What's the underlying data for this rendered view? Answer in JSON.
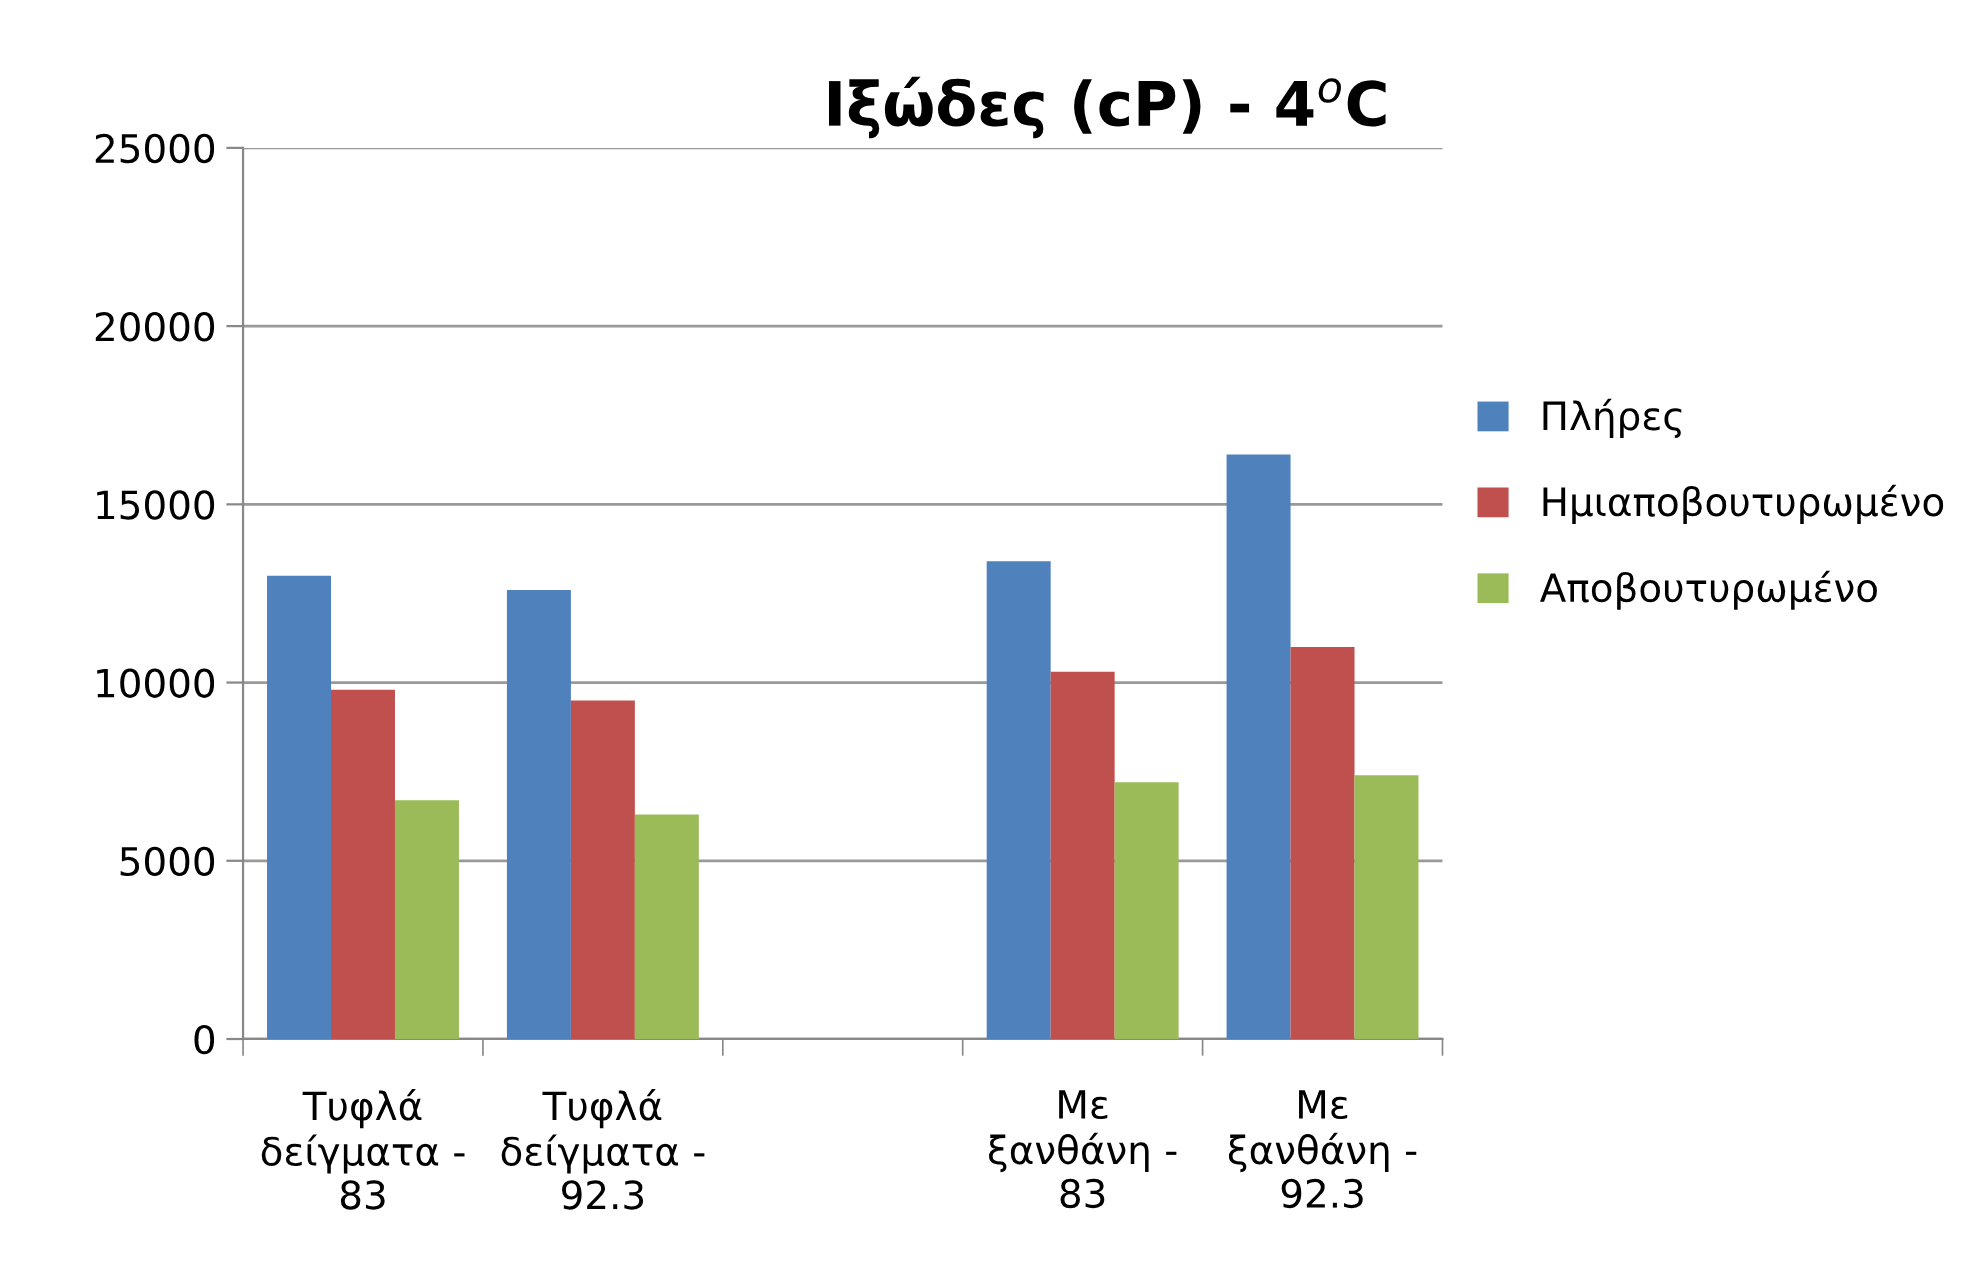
{
  "chart_data": {
    "type": "bar",
    "title": "Ιξώδες (cP) - 4$^{o}$C",
    "categories": [
      "Τυφλά\nδείγματα -\n83",
      "Τυφλά\nδείγματα -\n92.3",
      null,
      "Με\nξανθάνη -\n83",
      "Με\nξανθάνη -\n92.3"
    ],
    "series": [
      {
        "name": "Πλήρες",
        "color": "#4f81bd",
        "values": [
          13000,
          12600,
          null,
          13400,
          16400
        ]
      },
      {
        "name": "Ημιαποβουτυρωμένο",
        "color": "#c0504d",
        "values": [
          9800,
          9500,
          null,
          10300,
          11000
        ]
      },
      {
        "name": "Αποβουτυρωμένο",
        "color": "#9bbb59",
        "values": [
          6700,
          6300,
          null,
          7200,
          7400
        ]
      }
    ],
    "ylim": [
      0,
      25000
    ],
    "yticks": [
      0,
      5000,
      10000,
      15000,
      20000,
      25000
    ],
    "grid": "y",
    "legend": "right"
  }
}
